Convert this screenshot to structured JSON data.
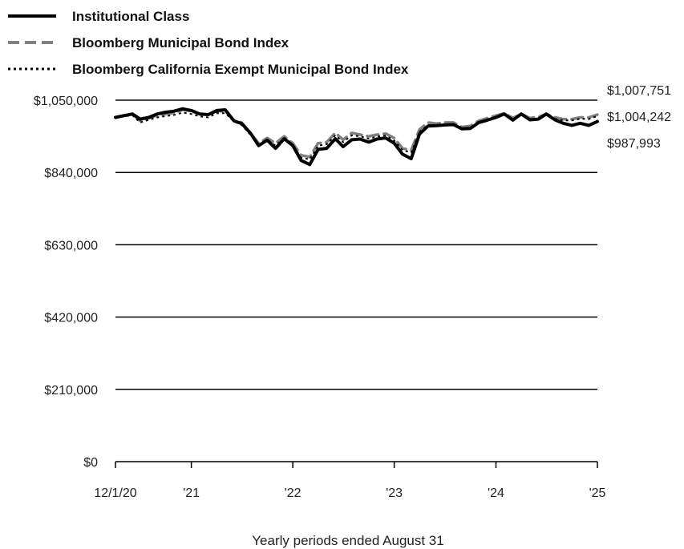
{
  "chart_data": {
    "type": "line",
    "title": "",
    "xlabel": "Yearly periods ended August 31",
    "ylabel": "",
    "ylim": [
      0,
      1050000
    ],
    "xlim": [
      "2020-12-01",
      "2025-08-31"
    ],
    "y_ticks": [
      {
        "value": 0,
        "label": "$0"
      },
      {
        "value": 210000,
        "label": "$210,000"
      },
      {
        "value": 420000,
        "label": "$420,000"
      },
      {
        "value": 630000,
        "label": "$630,000"
      },
      {
        "value": 840000,
        "label": "$840,000"
      },
      {
        "value": 1050000,
        "label": "$1,050,000"
      }
    ],
    "x_ticks": [
      {
        "value": "2020-12-01",
        "label": "12/1/20"
      },
      {
        "value": "2021-08-31",
        "label": "'21"
      },
      {
        "value": "2022-08-31",
        "label": "'22"
      },
      {
        "value": "2023-08-31",
        "label": "'23"
      },
      {
        "value": "2024-08-31",
        "label": "'24"
      },
      {
        "value": "2025-08-31",
        "label": "'25"
      }
    ],
    "grid": "horizontal",
    "legend": "top-left",
    "series": [
      {
        "name": "Institutional Class",
        "color": "#000000",
        "style": "solid",
        "end_label": "$987,993",
        "points": [
          [
            "2020-12-01",
            1000000
          ],
          [
            "2020-12-31",
            1005000
          ],
          [
            "2021-01-31",
            1010000
          ],
          [
            "2021-02-28",
            995000
          ],
          [
            "2021-03-31",
            1000000
          ],
          [
            "2021-04-30",
            1010000
          ],
          [
            "2021-05-31",
            1015000
          ],
          [
            "2021-06-30",
            1018000
          ],
          [
            "2021-07-31",
            1025000
          ],
          [
            "2021-08-31",
            1020000
          ],
          [
            "2021-09-30",
            1010000
          ],
          [
            "2021-10-31",
            1008000
          ],
          [
            "2021-11-30",
            1020000
          ],
          [
            "2021-12-31",
            1022000
          ],
          [
            "2022-01-31",
            990000
          ],
          [
            "2022-02-28",
            982000
          ],
          [
            "2022-03-31",
            955000
          ],
          [
            "2022-04-30",
            918000
          ],
          [
            "2022-05-31",
            934000
          ],
          [
            "2022-06-30",
            910000
          ],
          [
            "2022-07-31",
            938000
          ],
          [
            "2022-08-31",
            918000
          ],
          [
            "2022-09-30",
            875000
          ],
          [
            "2022-10-31",
            863000
          ],
          [
            "2022-11-30",
            907000
          ],
          [
            "2022-12-31",
            910000
          ],
          [
            "2023-01-31",
            938000
          ],
          [
            "2023-02-28",
            915000
          ],
          [
            "2023-03-31",
            935000
          ],
          [
            "2023-04-30",
            937000
          ],
          [
            "2023-05-31",
            928000
          ],
          [
            "2023-06-30",
            937000
          ],
          [
            "2023-07-31",
            940000
          ],
          [
            "2023-08-31",
            925000
          ],
          [
            "2023-09-30",
            893000
          ],
          [
            "2023-10-31",
            880000
          ],
          [
            "2023-11-30",
            952000
          ],
          [
            "2023-12-31",
            975000
          ],
          [
            "2024-01-31",
            976000
          ],
          [
            "2024-02-29",
            978000
          ],
          [
            "2024-03-31",
            979000
          ],
          [
            "2024-04-30",
            967000
          ],
          [
            "2024-05-31",
            968000
          ],
          [
            "2024-06-30",
            985000
          ],
          [
            "2024-07-31",
            992000
          ],
          [
            "2024-08-31",
            1000000
          ],
          [
            "2024-09-30",
            1010000
          ],
          [
            "2024-10-31",
            992000
          ],
          [
            "2024-11-30",
            1010000
          ],
          [
            "2024-12-31",
            993000
          ],
          [
            "2025-01-31",
            995000
          ],
          [
            "2025-02-28",
            1010000
          ],
          [
            "2025-03-31",
            993000
          ],
          [
            "2025-04-30",
            983000
          ],
          [
            "2025-05-31",
            977000
          ],
          [
            "2025-06-30",
            983000
          ],
          [
            "2025-07-31",
            977000
          ],
          [
            "2025-08-31",
            987993
          ]
        ]
      },
      {
        "name": "Bloomberg Municipal Bond Index",
        "color": "#808080",
        "style": "dashed",
        "end_label": "$1,007,751",
        "points": [
          [
            "2020-12-01",
            1000000
          ],
          [
            "2020-12-31",
            1005000
          ],
          [
            "2021-01-31",
            1010000
          ],
          [
            "2021-02-28",
            990000
          ],
          [
            "2021-03-31",
            998000
          ],
          [
            "2021-04-30",
            1006000
          ],
          [
            "2021-05-31",
            1010000
          ],
          [
            "2021-06-30",
            1013000
          ],
          [
            "2021-07-31",
            1022000
          ],
          [
            "2021-08-31",
            1018000
          ],
          [
            "2021-09-30",
            1010000
          ],
          [
            "2021-10-31",
            1008000
          ],
          [
            "2021-11-30",
            1018000
          ],
          [
            "2021-12-31",
            1018000
          ],
          [
            "2022-01-31",
            992000
          ],
          [
            "2022-02-28",
            985000
          ],
          [
            "2022-03-31",
            955000
          ],
          [
            "2022-04-30",
            925000
          ],
          [
            "2022-05-31",
            940000
          ],
          [
            "2022-06-30",
            925000
          ],
          [
            "2022-07-31",
            945000
          ],
          [
            "2022-08-31",
            925000
          ],
          [
            "2022-09-30",
            890000
          ],
          [
            "2022-10-31",
            885000
          ],
          [
            "2022-11-30",
            925000
          ],
          [
            "2022-12-31",
            928000
          ],
          [
            "2023-01-31",
            955000
          ],
          [
            "2023-02-28",
            935000
          ],
          [
            "2023-03-31",
            955000
          ],
          [
            "2023-04-30",
            950000
          ],
          [
            "2023-05-31",
            945000
          ],
          [
            "2023-06-30",
            950000
          ],
          [
            "2023-07-31",
            953000
          ],
          [
            "2023-08-31",
            940000
          ],
          [
            "2023-09-30",
            910000
          ],
          [
            "2023-10-31",
            905000
          ],
          [
            "2023-11-30",
            965000
          ],
          [
            "2023-12-31",
            985000
          ],
          [
            "2024-01-31",
            982000
          ],
          [
            "2024-02-29",
            985000
          ],
          [
            "2024-03-31",
            985000
          ],
          [
            "2024-04-30",
            972000
          ],
          [
            "2024-05-31",
            975000
          ],
          [
            "2024-06-30",
            990000
          ],
          [
            "2024-07-31",
            998000
          ],
          [
            "2024-08-31",
            1005000
          ],
          [
            "2024-09-30",
            1012000
          ],
          [
            "2024-10-31",
            998000
          ],
          [
            "2024-11-30",
            1010000
          ],
          [
            "2024-12-31",
            998000
          ],
          [
            "2025-01-31",
            1001000
          ],
          [
            "2025-02-28",
            1010000
          ],
          [
            "2025-03-31",
            1000000
          ],
          [
            "2025-04-30",
            995000
          ],
          [
            "2025-05-31",
            995000
          ],
          [
            "2025-06-30",
            1000000
          ],
          [
            "2025-07-31",
            1000000
          ],
          [
            "2025-08-31",
            1007751
          ]
        ]
      },
      {
        "name": "Bloomberg California Exempt Municipal Bond Index",
        "color": "#000000",
        "style": "dotted",
        "end_label": "$1,004,242",
        "points": [
          [
            "2020-12-01",
            1000000
          ],
          [
            "2020-12-31",
            1003000
          ],
          [
            "2021-01-31",
            1006000
          ],
          [
            "2021-02-28",
            985000
          ],
          [
            "2021-03-31",
            993000
          ],
          [
            "2021-04-30",
            1000000
          ],
          [
            "2021-05-31",
            1004000
          ],
          [
            "2021-06-30",
            1007000
          ],
          [
            "2021-07-31",
            1014000
          ],
          [
            "2021-08-31",
            1010000
          ],
          [
            "2021-09-30",
            1003000
          ],
          [
            "2021-10-31",
            1000000
          ],
          [
            "2021-11-30",
            1012000
          ],
          [
            "2021-12-31",
            1012000
          ],
          [
            "2022-01-31",
            988000
          ],
          [
            "2022-02-28",
            978000
          ],
          [
            "2022-03-31",
            950000
          ],
          [
            "2022-04-30",
            920000
          ],
          [
            "2022-05-31",
            935000
          ],
          [
            "2022-06-30",
            918000
          ],
          [
            "2022-07-31",
            940000
          ],
          [
            "2022-08-31",
            920000
          ],
          [
            "2022-09-30",
            883000
          ],
          [
            "2022-10-31",
            878000
          ],
          [
            "2022-11-30",
            918000
          ],
          [
            "2022-12-31",
            922000
          ],
          [
            "2023-01-31",
            948000
          ],
          [
            "2023-02-28",
            928000
          ],
          [
            "2023-03-31",
            948000
          ],
          [
            "2023-04-30",
            945000
          ],
          [
            "2023-05-31",
            938000
          ],
          [
            "2023-06-30",
            944000
          ],
          [
            "2023-07-31",
            947000
          ],
          [
            "2023-08-31",
            933000
          ],
          [
            "2023-09-30",
            905000
          ],
          [
            "2023-10-31",
            898000
          ],
          [
            "2023-11-30",
            958000
          ],
          [
            "2023-12-31",
            978000
          ],
          [
            "2024-01-31",
            976000
          ],
          [
            "2024-02-29",
            979000
          ],
          [
            "2024-03-31",
            980000
          ],
          [
            "2024-04-30",
            968000
          ],
          [
            "2024-05-31",
            970000
          ],
          [
            "2024-06-30",
            985000
          ],
          [
            "2024-07-31",
            993000
          ],
          [
            "2024-08-31",
            1000000
          ],
          [
            "2024-09-30",
            1008000
          ],
          [
            "2024-10-31",
            994000
          ],
          [
            "2024-11-30",
            1006000
          ],
          [
            "2024-12-31",
            995000
          ],
          [
            "2025-01-31",
            997000
          ],
          [
            "2025-02-28",
            1006000
          ],
          [
            "2025-03-31",
            996000
          ],
          [
            "2025-04-30",
            991000
          ],
          [
            "2025-05-31",
            991000
          ],
          [
            "2025-06-30",
            996000
          ],
          [
            "2025-07-31",
            995000
          ],
          [
            "2025-08-31",
            1004242
          ]
        ]
      }
    ]
  }
}
